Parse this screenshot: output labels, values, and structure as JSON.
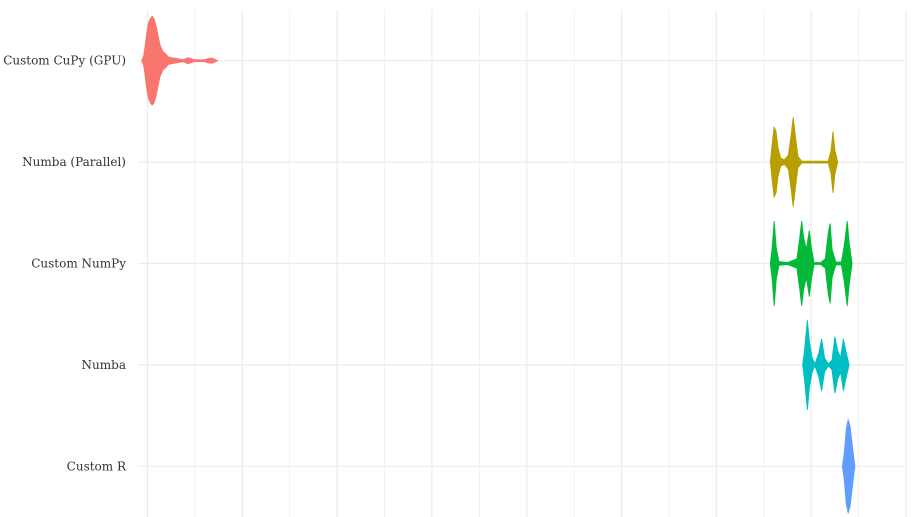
{
  "chart_data": {
    "type": "violin",
    "title": "",
    "xlabel": "",
    "ylabel": "",
    "x_tick_labels": [],
    "orientation": "horizontal",
    "grid": true,
    "legend": "none",
    "categories": [
      "Custom CuPy (GPU)",
      "Numba (Parallel)",
      "Custom NumPy",
      "Numba",
      "Custom R"
    ],
    "series": [
      {
        "name": "Custom CuPy (GPU)",
        "color": "#F8766D",
        "profile": [
          [
            -0.6,
            0
          ],
          [
            -0.4,
            0.1
          ],
          [
            -0.25,
            0.3
          ],
          [
            -0.1,
            0.55
          ],
          [
            0.1,
            0.8
          ],
          [
            0.3,
            0.9
          ],
          [
            0.5,
            0.95
          ],
          [
            0.7,
            0.9
          ],
          [
            0.9,
            0.75
          ],
          [
            1.1,
            0.55
          ],
          [
            1.3,
            0.35
          ],
          [
            1.6,
            0.2
          ],
          [
            1.9,
            0.15
          ],
          [
            2.2,
            0.08
          ],
          [
            2.6,
            0.06
          ],
          [
            3.0,
            0.05
          ],
          [
            3.4,
            0.03
          ],
          [
            3.8,
            0.02
          ],
          [
            4.2,
            0.06
          ],
          [
            4.5,
            0.05
          ],
          [
            4.9,
            0.02
          ],
          [
            5.6,
            0.015
          ],
          [
            6.0,
            0.02
          ],
          [
            6.5,
            0.05
          ],
          [
            6.9,
            0.05
          ],
          [
            7.2,
            0.02
          ],
          [
            7.4,
            0
          ]
        ]
      },
      {
        "name": "Numba (Parallel)",
        "color": "#B79F00",
        "profile": [
          [
            65.7,
            0
          ],
          [
            65.9,
            0.4
          ],
          [
            66.1,
            0.75
          ],
          [
            66.3,
            0.65
          ],
          [
            66.5,
            0.3
          ],
          [
            66.8,
            0.08
          ],
          [
            67.2,
            0.05
          ],
          [
            67.6,
            0.15
          ],
          [
            67.9,
            0.6
          ],
          [
            68.1,
            0.95
          ],
          [
            68.3,
            0.6
          ],
          [
            68.6,
            0.12
          ],
          [
            69.0,
            0.02
          ],
          [
            70.5,
            0.02
          ],
          [
            71.8,
            0.02
          ],
          [
            72.1,
            0.25
          ],
          [
            72.3,
            0.65
          ],
          [
            72.5,
            0.25
          ],
          [
            72.8,
            0
          ]
        ]
      },
      {
        "name": "Custom NumPy",
        "color": "#00BA38",
        "profile": [
          [
            65.7,
            0
          ],
          [
            65.9,
            0.35
          ],
          [
            66.1,
            0.9
          ],
          [
            66.3,
            0.35
          ],
          [
            66.6,
            0.04
          ],
          [
            67.5,
            0.02
          ],
          [
            68.5,
            0.1
          ],
          [
            68.8,
            0.55
          ],
          [
            69.0,
            0.9
          ],
          [
            69.2,
            0.55
          ],
          [
            69.5,
            0.3
          ],
          [
            69.8,
            0.7
          ],
          [
            70.0,
            0.35
          ],
          [
            70.3,
            0.02
          ],
          [
            71.0,
            0.02
          ],
          [
            71.5,
            0.1
          ],
          [
            71.8,
            0.65
          ],
          [
            72.0,
            0.85
          ],
          [
            72.2,
            0.3
          ],
          [
            72.6,
            0.03
          ],
          [
            73.2,
            0.03
          ],
          [
            73.5,
            0.4
          ],
          [
            73.8,
            0.9
          ],
          [
            74.0,
            0.45
          ],
          [
            74.3,
            0
          ]
        ]
      },
      {
        "name": "Numba",
        "color": "#00BFC4",
        "profile": [
          [
            69.1,
            0
          ],
          [
            69.3,
            0.3
          ],
          [
            69.6,
            0.95
          ],
          [
            69.8,
            0.5
          ],
          [
            70.1,
            0.15
          ],
          [
            70.4,
            0.02
          ],
          [
            70.8,
            0.25
          ],
          [
            71.1,
            0.55
          ],
          [
            71.4,
            0.15
          ],
          [
            71.8,
            0.02
          ],
          [
            72.2,
            0.1
          ],
          [
            72.5,
            0.6
          ],
          [
            72.8,
            0.3
          ],
          [
            73.1,
            0.15
          ],
          [
            73.4,
            0.55
          ],
          [
            73.7,
            0.25
          ],
          [
            74.0,
            0
          ]
        ]
      },
      {
        "name": "Custom R",
        "color": "#619CFF",
        "profile": [
          [
            73.3,
            0
          ],
          [
            73.5,
            0.3
          ],
          [
            73.7,
            0.8
          ],
          [
            73.9,
            1.0
          ],
          [
            74.1,
            0.85
          ],
          [
            74.3,
            0.5
          ],
          [
            74.6,
            0
          ]
        ]
      }
    ],
    "xlim": [
      -1,
      80
    ]
  }
}
